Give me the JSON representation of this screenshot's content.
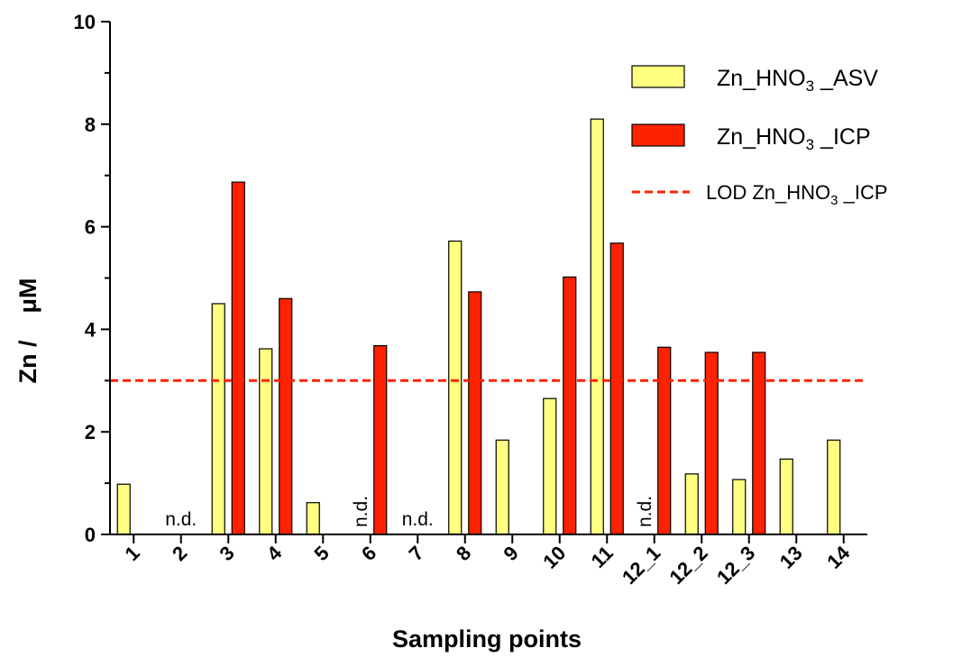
{
  "chart_data": {
    "type": "bar",
    "xlabel": "Sampling points",
    "ylabel": "Zn /    μM",
    "ylim": [
      0,
      10
    ],
    "yticks": [
      "0",
      "2",
      "4",
      "6",
      "8",
      "10"
    ],
    "categories": [
      "1",
      "2",
      "3",
      "4",
      "5",
      "6",
      "7",
      "8",
      "9",
      "10",
      "11",
      "12_1",
      "12_2",
      "12_3",
      "13",
      "14"
    ],
    "series": [
      {
        "name": "Zn_HNO3_ASV",
        "legend_label": {
          "prefix": "Zn_HNO",
          "sub": "3",
          "suffix": " _ASV"
        },
        "color": "#ffff80",
        "values": [
          0.98,
          null,
          4.5,
          3.62,
          0.62,
          null,
          null,
          5.72,
          1.84,
          2.65,
          8.1,
          null,
          1.18,
          1.07,
          1.47,
          1.84
        ]
      },
      {
        "name": "Zn_HNO3_ICP",
        "legend_label": {
          "prefix": "Zn_HNO",
          "sub": "3",
          "suffix": " _ICP"
        },
        "color": "#ff2200",
        "values": [
          null,
          null,
          6.87,
          4.6,
          null,
          3.68,
          null,
          4.73,
          null,
          5.02,
          5.68,
          3.65,
          3.55,
          3.55,
          null,
          null
        ]
      }
    ],
    "reference_line": {
      "name": "LOD Zn_HNO3_ICP",
      "legend_label": {
        "prefix": "LOD Zn_HNO",
        "sub": "3",
        "suffix": " _ICP"
      },
      "value": 3.0,
      "color": "#ff2200",
      "style": "dashed"
    },
    "annotations": [
      {
        "category": "2",
        "text": "n.d."
      },
      {
        "category": "6",
        "text": "n.d."
      },
      {
        "category": "7",
        "text": "n.d."
      },
      {
        "category": "12_1",
        "text": "n.d."
      }
    ],
    "legend_position": "top-right",
    "grid": false
  }
}
